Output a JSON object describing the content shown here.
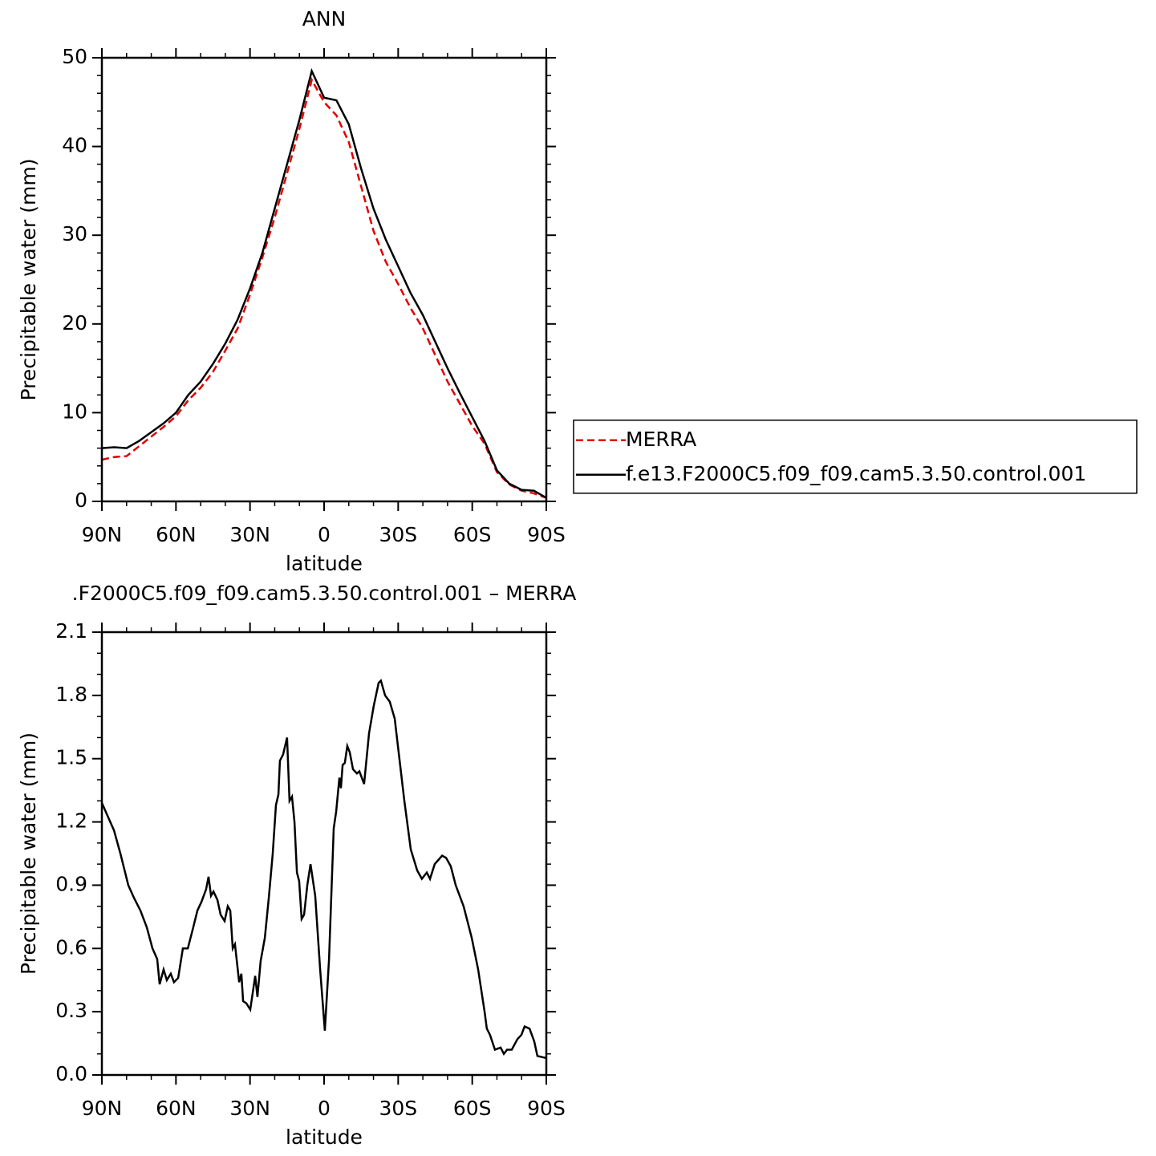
{
  "chart_data": [
    {
      "type": "line",
      "title": "ANN",
      "x_label": "latitude",
      "y_label": "Precipitable water (mm)",
      "xlim": [
        90,
        -90
      ],
      "ylim": [
        0,
        50
      ],
      "xticks": [
        {
          "value": 90,
          "label": "90N"
        },
        {
          "value": 60,
          "label": "60N"
        },
        {
          "value": 30,
          "label": "30N"
        },
        0,
        {
          "value": -30,
          "label": "30S"
        },
        {
          "value": -60,
          "label": "60S"
        },
        {
          "value": -90,
          "label": "90S"
        }
      ],
      "xminorticks": [
        80,
        70,
        50,
        40,
        20,
        10,
        -10,
        -20,
        -40,
        -50,
        -70,
        -80
      ],
      "yticks": [
        0,
        10,
        20,
        30,
        40,
        50
      ],
      "yminorticks": [
        2,
        4,
        6,
        8,
        12,
        14,
        16,
        18,
        22,
        24,
        26,
        28,
        32,
        34,
        36,
        38,
        42,
        44,
        46,
        48
      ],
      "legend": "right",
      "x": [
        90,
        85,
        80,
        75,
        70,
        65,
        60,
        55,
        50,
        45,
        40,
        35,
        30,
        25,
        20,
        15,
        10,
        5,
        0,
        -5,
        -10,
        -15,
        -20,
        -25,
        -30,
        -35,
        -40,
        -45,
        -50,
        -55,
        -60,
        -65,
        -70,
        -75,
        -80,
        -85,
        -90
      ],
      "series": [
        {
          "name": "MERRA",
          "color": "#e00000",
          "linestyle": "dashed",
          "values": [
            4.7,
            5.0,
            5.1,
            6.2,
            7.3,
            8.4,
            9.6,
            11.4,
            12.8,
            14.6,
            17.0,
            19.5,
            23.3,
            27.5,
            32.0,
            37.0,
            42.0,
            47.5,
            45.0,
            43.5,
            40.5,
            35.5,
            30.5,
            27.0,
            24.5,
            21.8,
            19.5,
            16.5,
            13.5,
            11.0,
            8.5,
            6.5,
            3.3,
            1.9,
            1.2,
            0.9,
            0.4
          ]
        },
        {
          "name": "f.e13.F2000C5.f09_f09.cam5.3.50.control.001",
          "color": "#000000",
          "linestyle": "solid",
          "values": [
            6.0,
            6.1,
            6.0,
            6.8,
            7.8,
            8.8,
            10.0,
            12.0,
            13.5,
            15.5,
            17.8,
            20.5,
            24.0,
            28.0,
            33.0,
            38.0,
            43.0,
            48.5,
            45.5,
            45.2,
            42.5,
            37.5,
            33.0,
            29.5,
            26.5,
            23.5,
            21.0,
            18.0,
            15.0,
            12.2,
            9.5,
            6.8,
            3.5,
            2.0,
            1.3,
            1.2,
            0.4
          ]
        }
      ]
    },
    {
      "type": "line",
      "title": ".F2000C5.f09_f09.cam5.3.50.control.001 – MERRA",
      "x_label": "latitude",
      "y_label": "Precipitable water (mm)",
      "xlim": [
        90,
        -90
      ],
      "ylim": [
        0,
        2.1
      ],
      "xticks": [
        {
          "value": 90,
          "label": "90N"
        },
        {
          "value": 60,
          "label": "60N"
        },
        {
          "value": 30,
          "label": "30N"
        },
        0,
        {
          "value": -30,
          "label": "30S"
        },
        {
          "value": -60,
          "label": "60S"
        },
        {
          "value": -90,
          "label": "90S"
        }
      ],
      "xminorticks": [
        80,
        70,
        50,
        40,
        20,
        10,
        -10,
        -20,
        -40,
        -50,
        -70,
        -80
      ],
      "yticks": [
        {
          "value": 0,
          "label": "0.0"
        },
        0.3,
        0.6,
        0.9,
        1.2,
        1.5,
        1.8,
        2.1
      ],
      "yminorticks": [
        0.1,
        0.2,
        0.4,
        0.5,
        0.7,
        0.8,
        1.0,
        1.1,
        1.3,
        1.4,
        1.6,
        1.7,
        1.9,
        2.0
      ],
      "x": [
        90,
        85.1,
        82.5,
        79.3,
        77,
        74.4,
        71.8,
        69.5,
        67.6,
        66.6,
        65,
        63.7,
        62.1,
        60.8,
        59.1,
        57.2,
        55.2,
        53,
        51.3,
        49.7,
        47.8,
        46.8,
        45.8,
        44.8,
        43.2,
        41.9,
        40.3,
        39,
        38,
        37,
        36.1,
        34.4,
        33.5,
        32.8,
        31.5,
        29.9,
        27.9,
        27,
        25.7,
        24,
        22.4,
        20.8,
        19.5,
        18.5,
        17.9,
        16.6,
        15,
        14,
        13,
        12,
        11,
        10.1,
        9.1,
        8.1,
        6.8,
        5.5,
        3.6,
        1.6,
        -0.3,
        -2,
        -3.9,
        -4.9,
        -6.2,
        -6.8,
        -7.5,
        -8.4,
        -9.4,
        -10.4,
        -11.7,
        -13.3,
        -14.3,
        -16.2,
        -18.2,
        -20.1,
        -22.1,
        -23,
        -24.7,
        -26.6,
        -28.6,
        -30.5,
        -32.5,
        -35.1,
        -37.7,
        -39.6,
        -41.6,
        -42.9,
        -44.8,
        -47.8,
        -49.4,
        -51.3,
        -53.3,
        -56.5,
        -59.8,
        -62.4,
        -65,
        -65.9,
        -67.2,
        -69.2,
        -71.5,
        -72.8,
        -74.1,
        -76,
        -78.3,
        -79.9,
        -81.2,
        -83.2,
        -85.1,
        -86.4,
        -90
      ],
      "series": [
        {
          "color": "#000000",
          "linestyle": "solid",
          "values": [
            1.29,
            1.16,
            1.05,
            0.9,
            0.84,
            0.78,
            0.7,
            0.6,
            0.55,
            0.43,
            0.5,
            0.45,
            0.48,
            0.44,
            0.46,
            0.6,
            0.6,
            0.7,
            0.78,
            0.82,
            0.88,
            0.94,
            0.85,
            0.87,
            0.83,
            0.76,
            0.73,
            0.8,
            0.78,
            0.6,
            0.62,
            0.44,
            0.48,
            0.35,
            0.34,
            0.31,
            0.47,
            0.37,
            0.54,
            0.65,
            0.84,
            1.05,
            1.28,
            1.33,
            1.49,
            1.52,
            1.6,
            1.3,
            1.32,
            1.2,
            0.96,
            0.92,
            0.74,
            0.76,
            0.9,
            1.0,
            0.85,
            0.5,
            0.21,
            0.55,
            1.17,
            1.25,
            1.41,
            1.36,
            1.47,
            1.48,
            1.56,
            1.53,
            1.45,
            1.43,
            1.44,
            1.38,
            1.62,
            1.75,
            1.86,
            1.87,
            1.8,
            1.77,
            1.69,
            1.5,
            1.3,
            1.07,
            0.97,
            0.93,
            0.96,
            0.93,
            1.0,
            1.04,
            1.03,
            0.99,
            0.9,
            0.8,
            0.65,
            0.5,
            0.3,
            0.22,
            0.19,
            0.12,
            0.13,
            0.1,
            0.12,
            0.12,
            0.17,
            0.19,
            0.23,
            0.22,
            0.16,
            0.09,
            0.08
          ]
        }
      ]
    }
  ]
}
